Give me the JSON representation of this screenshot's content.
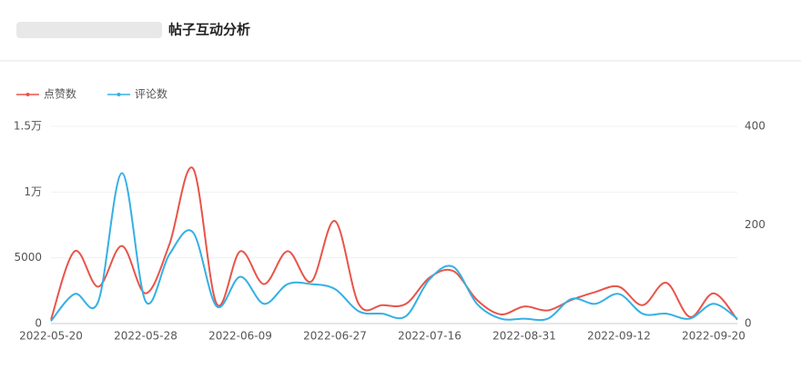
{
  "chart_data": {
    "type": "line",
    "title": "帖子互动分析",
    "categories": [
      "2022-05-20",
      null,
      null,
      null,
      "2022-05-28",
      null,
      null,
      null,
      "2022-06-09",
      null,
      null,
      null,
      "2022-06-27",
      null,
      null,
      null,
      "2022-07-16",
      null,
      null,
      null,
      "2022-08-31",
      null,
      null,
      null,
      "2022-09-12",
      null,
      null,
      null,
      "2022-09-20",
      null
    ],
    "series": [
      {
        "name": "点赞数",
        "color": "#e8544a",
        "values": [
          300,
          5500,
          2800,
          5900,
          2300,
          6000,
          11800,
          1500,
          5500,
          3000,
          5500,
          3200,
          7800,
          1500,
          1400,
          1500,
          3500,
          4000,
          1800,
          700,
          1300,
          1000,
          1800,
          2400,
          2800,
          1400,
          3100,
          500,
          2300,
          300
        ]
      },
      {
        "name": "评论数",
        "color": "#35b0e4",
        "axis": "y2",
        "values": [
          5,
          60,
          45,
          305,
          45,
          140,
          185,
          35,
          95,
          40,
          80,
          80,
          70,
          25,
          20,
          15,
          90,
          115,
          40,
          10,
          10,
          10,
          50,
          40,
          60,
          20,
          20,
          10,
          40,
          10
        ]
      }
    ],
    "ylim": [
      0,
      15000
    ],
    "yticks": [
      0,
      5000,
      {
        "value": 10000,
        "label": "1万"
      },
      {
        "value": 15000,
        "label": "1.5万"
      }
    ],
    "y2lim": [
      0,
      400
    ],
    "y2ticks": [
      0,
      200,
      400
    ],
    "grid": true
  }
}
